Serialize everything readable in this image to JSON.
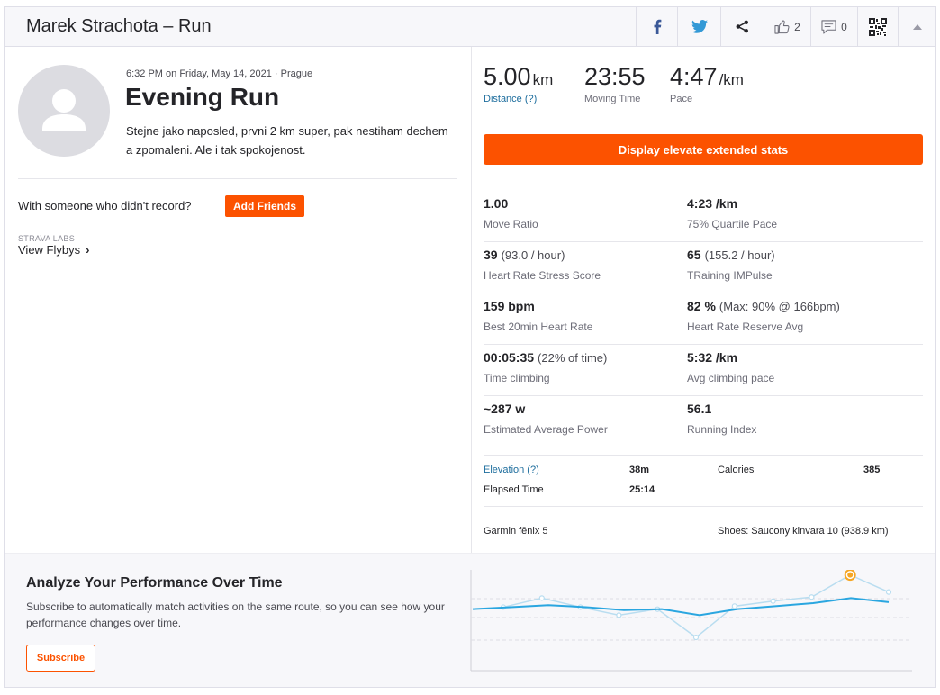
{
  "header": {
    "title": "Marek Strachota – Run",
    "kudos_count": "2",
    "comments_count": "0"
  },
  "activity": {
    "meta": "6:32 PM on Friday, May 14, 2021 · Prague",
    "title": "Evening Run",
    "description": "Stejne jako naposled, prvni 2 km super, pak nestiham dechem a zpomaleni. Ale i tak spokojenost.",
    "with_someone": "With someone who didn't record?",
    "add_friends": "Add Friends",
    "labs_label": "STRAVA LABS",
    "flybys_label": "View Flybys"
  },
  "summary": {
    "distance_value": "5.00",
    "distance_unit": "km",
    "distance_label": "Distance (?)",
    "moving_time_value": "23:55",
    "moving_time_label": "Moving Time",
    "pace_value": "4:47",
    "pace_unit": "/km",
    "pace_label": "Pace"
  },
  "elevate": {
    "button_label": "Display elevate extended stats"
  },
  "extended_stats": [
    {
      "value": "1.00",
      "extra": "",
      "label": "Move Ratio"
    },
    {
      "value": "4:23 /km",
      "extra": "",
      "label": "75% Quartile Pace"
    },
    {
      "value": "39",
      "extra": "(93.0 / hour)",
      "label": "Heart Rate Stress Score"
    },
    {
      "value": "65",
      "extra": "(155.2 / hour)",
      "label": "TRaining IMPulse"
    },
    {
      "value": "159 bpm",
      "extra": "",
      "label": "Best 20min Heart Rate"
    },
    {
      "value": "82 %",
      "extra": "(Max: 90% @ 166bpm)",
      "label": "Heart Rate Reserve Avg"
    },
    {
      "value": "00:05:35",
      "extra": "(22% of time)",
      "label": "Time climbing"
    },
    {
      "value": "5:32 /km",
      "extra": "",
      "label": "Avg climbing pace"
    },
    {
      "value": "~287 w",
      "extra": "",
      "label": "Estimated Average Power"
    },
    {
      "value": "56.1",
      "extra": "",
      "label": "Running Index"
    }
  ],
  "more_stats": {
    "elevation_label": "Elevation (?)",
    "elevation_value": "38m",
    "calories_label": "Calories",
    "calories_value": "385",
    "elapsed_label": "Elapsed Time",
    "elapsed_value": "25:14"
  },
  "device": {
    "watch": "Garmin fēnix 5",
    "shoes": "Shoes: Saucony kinvara 10 (938.9 km)"
  },
  "upsell": {
    "title": "Analyze Your Performance Over Time",
    "text": "Subscribe to automatically match activities on the same route, so you can see how your performance changes over time.",
    "subscribe": "Subscribe"
  },
  "colors": {
    "brand": "#fc5200",
    "link": "#1d6d9d",
    "chart_line": "#2aa6e0",
    "chart_faint": "#b9ddf0"
  },
  "chart_data": {
    "type": "line",
    "title": "",
    "xlabel": "",
    "ylabel": "",
    "ylim": [
      0,
      10
    ],
    "grid": true,
    "series": [
      {
        "values": [
          6.1,
          6.3,
          6.5,
          6.3,
          6.0,
          6.1,
          5.5,
          6.1,
          6.4,
          6.7,
          7.2,
          6.8
        ]
      },
      {
        "values": [
          6.3,
          7.2,
          6.3,
          5.5,
          6.1,
          3.3,
          6.4,
          6.9,
          7.3,
          9.5,
          7.8
        ]
      }
    ],
    "highlight_index": 9
  }
}
